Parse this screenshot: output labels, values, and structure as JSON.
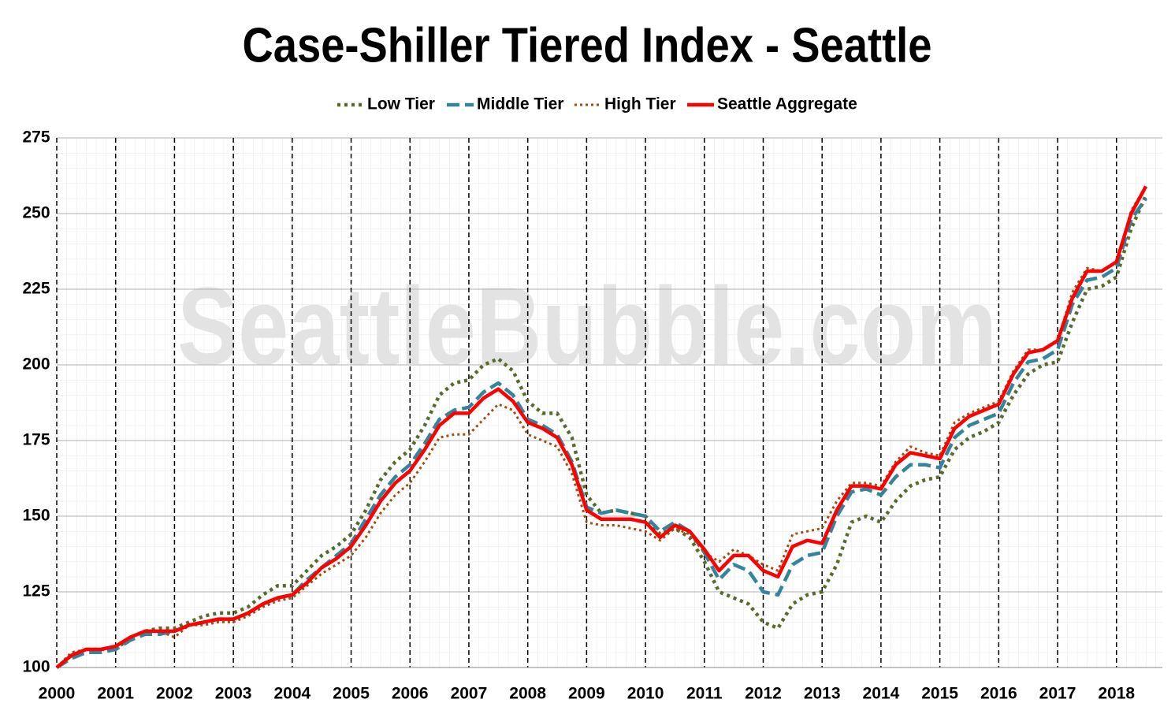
{
  "chart_data": {
    "type": "line",
    "title": "Case-Shiller Tiered Index - Seattle",
    "watermark": "SeattleBubble.com",
    "x": [
      2000,
      2000.25,
      2000.5,
      2000.75,
      2001,
      2001.25,
      2001.5,
      2001.75,
      2002,
      2002.25,
      2002.5,
      2002.75,
      2003,
      2003.25,
      2003.5,
      2003.75,
      2004,
      2004.25,
      2004.5,
      2004.75,
      2005,
      2005.25,
      2005.5,
      2005.75,
      2006,
      2006.25,
      2006.5,
      2006.75,
      2007,
      2007.25,
      2007.5,
      2007.75,
      2008,
      2008.25,
      2008.5,
      2008.75,
      2009,
      2009.25,
      2009.5,
      2009.75,
      2010,
      2010.25,
      2010.5,
      2010.75,
      2011,
      2011.25,
      2011.5,
      2011.75,
      2012,
      2012.25,
      2012.5,
      2012.75,
      2013,
      2013.25,
      2013.5,
      2013.75,
      2014,
      2014.25,
      2014.5,
      2014.75,
      2015,
      2015.25,
      2015.5,
      2015.75,
      2016,
      2016.25,
      2016.5,
      2016.75,
      2017,
      2017.25,
      2017.5,
      2017.75,
      2018,
      2018.25,
      2018.5
    ],
    "series": [
      {
        "name": "Low Tier",
        "color": "#566b2c",
        "style": "dotted",
        "values": [
          100,
          104,
          106,
          106,
          106,
          110,
          112,
          113,
          113,
          115,
          117,
          118,
          118,
          120,
          124,
          127,
          127,
          132,
          137,
          140,
          144,
          152,
          162,
          168,
          172,
          180,
          190,
          194,
          195,
          200,
          202,
          198,
          188,
          184,
          184,
          176,
          157,
          151,
          152,
          151,
          150,
          144,
          146,
          143,
          135,
          125,
          123,
          121,
          115,
          113,
          121,
          124,
          125,
          134,
          148,
          150,
          148,
          155,
          160,
          162,
          163,
          172,
          176,
          178,
          181,
          190,
          197,
          200,
          201,
          214,
          225,
          226,
          229,
          245,
          256
        ]
      },
      {
        "name": "Middle Tier",
        "color": "#31859c",
        "style": "dashed",
        "values": [
          100,
          103,
          105,
          105,
          106,
          109,
          111,
          111,
          112,
          114,
          115,
          116,
          116,
          118,
          121,
          123,
          124,
          129,
          133,
          137,
          141,
          149,
          157,
          163,
          167,
          174,
          182,
          185,
          186,
          191,
          194,
          190,
          182,
          180,
          177,
          168,
          153,
          151,
          152,
          151,
          150,
          145,
          148,
          145,
          138,
          129,
          134,
          132,
          125,
          124,
          134,
          137,
          138,
          150,
          158,
          159,
          157,
          163,
          167,
          167,
          166,
          176,
          180,
          182,
          184,
          194,
          201,
          202,
          205,
          220,
          228,
          229,
          232,
          248,
          255
        ]
      },
      {
        "name": "High Tier",
        "color": "#9c4f0f",
        "style": "fine-dotted",
        "values": [
          100,
          105,
          106,
          106,
          107,
          110,
          112,
          112,
          110,
          114,
          114,
          115,
          115,
          117,
          120,
          122,
          123,
          127,
          131,
          134,
          137,
          143,
          151,
          157,
          161,
          168,
          176,
          177,
          177,
          182,
          187,
          185,
          177,
          175,
          173,
          164,
          148,
          147,
          147,
          146,
          145,
          142,
          146,
          144,
          138,
          135,
          139,
          137,
          134,
          132,
          144,
          145,
          146,
          155,
          161,
          161,
          160,
          168,
          173,
          171,
          170,
          181,
          184,
          186,
          188,
          198,
          205,
          205,
          208,
          224,
          232,
          231,
          234,
          251,
          259
        ]
      },
      {
        "name": "Seattle Aggregate",
        "color": "#ff0000",
        "style": "solid",
        "values": [
          100,
          104,
          106,
          106,
          107,
          110,
          112,
          112,
          112,
          114,
          115,
          116,
          116,
          118,
          121,
          123,
          124,
          128,
          133,
          136,
          140,
          147,
          155,
          161,
          165,
          172,
          180,
          184,
          184,
          189,
          192,
          188,
          181,
          179,
          176,
          167,
          152,
          149,
          149,
          149,
          148,
          143,
          147,
          145,
          139,
          132,
          137,
          137,
          132,
          130,
          140,
          142,
          141,
          152,
          160,
          160,
          159,
          167,
          171,
          170,
          169,
          179,
          183,
          185,
          187,
          197,
          204,
          205,
          208,
          222,
          231,
          231,
          234,
          250,
          259
        ]
      }
    ],
    "xlim": [
      2000,
      2018.78
    ],
    "xticks": [
      2000,
      2001,
      2002,
      2003,
      2004,
      2005,
      2006,
      2007,
      2008,
      2009,
      2010,
      2011,
      2012,
      2013,
      2014,
      2015,
      2016,
      2017,
      2018
    ],
    "ylim": [
      100,
      275
    ],
    "yticks": [
      100,
      125,
      150,
      175,
      200,
      225,
      250,
      275
    ],
    "grid": true,
    "legend": "top"
  }
}
